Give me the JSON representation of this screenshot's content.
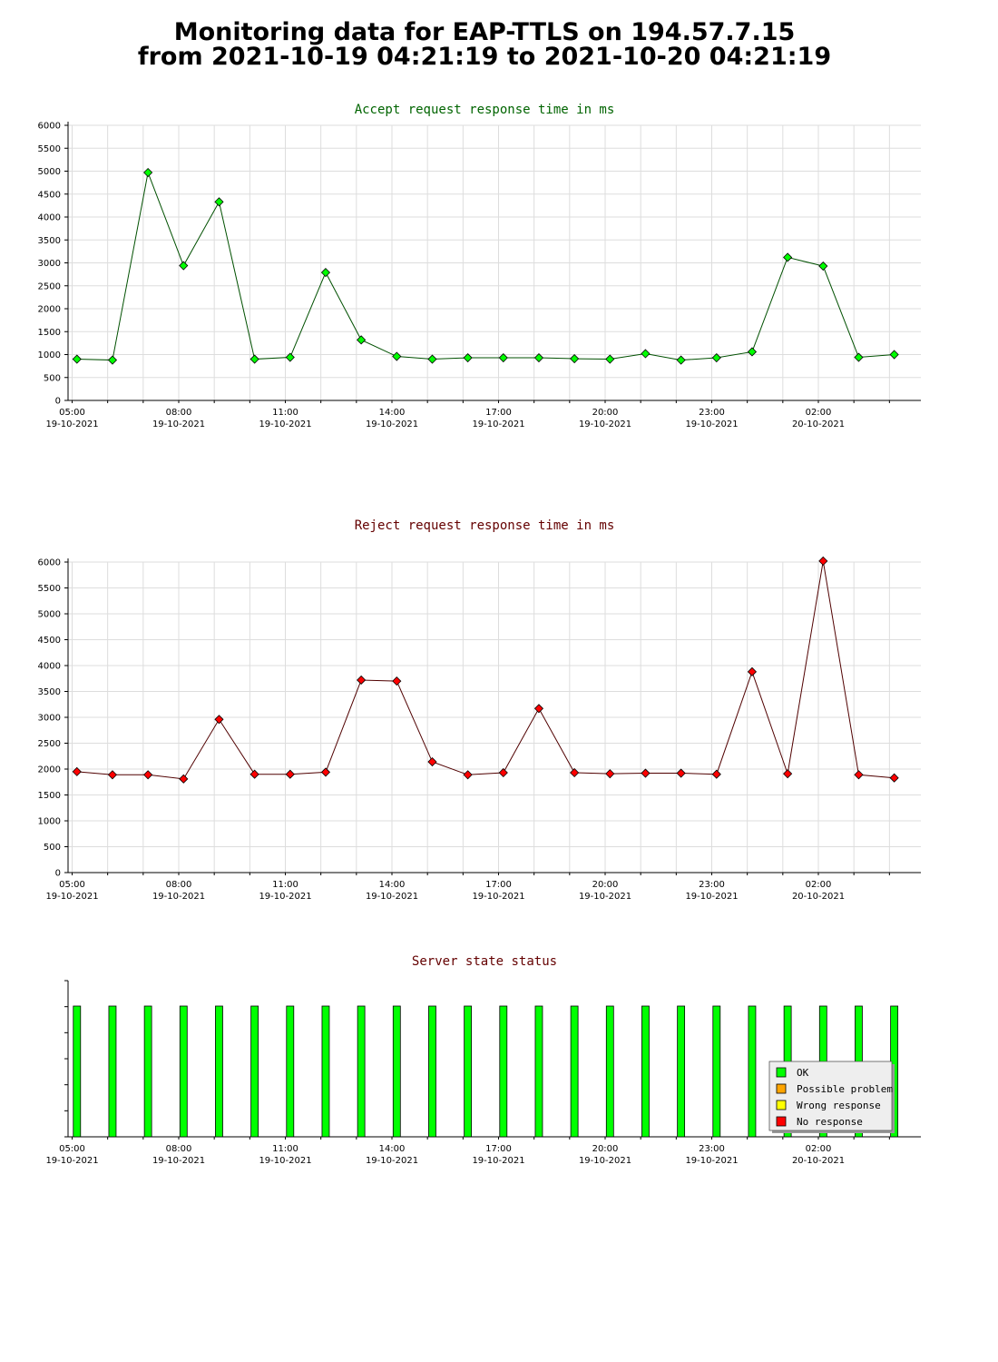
{
  "title": {
    "line1": "Monitoring data for EAP-TTLS on 194.57.7.15",
    "line2": "from 2021-10-19 04:21:19 to 2021-10-20 04:21:19"
  },
  "colors": {
    "accept": "#00ff00",
    "accept_line": "#005000",
    "accept_title": "#006400",
    "reject": "#ff0000",
    "reject_line": "#500000",
    "reject_title": "#640000",
    "status_title": "#640000",
    "ok": "#00ff00",
    "possible_problem": "#ffa500",
    "wrong_response": "#ffff00",
    "no_response": "#ff0000",
    "grid": "#dddddd"
  },
  "x_ticks": [
    {
      "time": "05:00",
      "date": "19-10-2021"
    },
    {
      "time": "08:00",
      "date": "19-10-2021"
    },
    {
      "time": "11:00",
      "date": "19-10-2021"
    },
    {
      "time": "14:00",
      "date": "19-10-2021"
    },
    {
      "time": "17:00",
      "date": "19-10-2021"
    },
    {
      "time": "20:00",
      "date": "19-10-2021"
    },
    {
      "time": "23:00",
      "date": "19-10-2021"
    },
    {
      "time": "02:00",
      "date": "20-10-2021"
    }
  ],
  "chart_data": [
    {
      "type": "line",
      "title": "Accept request response time in ms",
      "x_unit": "hours after 2021-10-19 05:00",
      "x": [
        0.25,
        1.25,
        2.25,
        3.25,
        4.25,
        5.25,
        6.25,
        7.25,
        8.25,
        9.25,
        10.25,
        11.25,
        12.25,
        13.25,
        14.25,
        15.25,
        16.25,
        17.25,
        18.25,
        19.25,
        20.25,
        21.25,
        22.25,
        23.25
      ],
      "values": [
        900,
        880,
        4970,
        2940,
        4330,
        900,
        940,
        2790,
        1320,
        960,
        900,
        930,
        930,
        930,
        910,
        900,
        1020,
        880,
        930,
        1060,
        3120,
        2930,
        940,
        1000
      ],
      "ylim": [
        0,
        6000
      ],
      "yticks": [
        0,
        500,
        1000,
        1500,
        2000,
        2500,
        3000,
        3500,
        4000,
        4500,
        5000,
        5500,
        6000
      ],
      "grid": true
    },
    {
      "type": "line",
      "title": "Reject request response time in ms",
      "x_unit": "hours after 2021-10-19 05:00",
      "x": [
        0.25,
        1.25,
        2.25,
        3.25,
        4.25,
        5.25,
        6.25,
        7.25,
        8.25,
        9.25,
        10.25,
        11.25,
        12.25,
        13.25,
        14.25,
        15.25,
        16.25,
        17.25,
        18.25,
        19.25,
        20.25,
        21.25,
        22.25,
        23.25
      ],
      "values": [
        1950,
        1890,
        1890,
        1810,
        2960,
        1900,
        1900,
        1940,
        3720,
        3700,
        2140,
        1890,
        1930,
        3170,
        1930,
        1910,
        1920,
        1920,
        1900,
        3880,
        1910,
        6020,
        1890,
        1830
      ],
      "ylim": [
        0,
        6000
      ],
      "yticks": [
        0,
        500,
        1000,
        1500,
        2000,
        2500,
        3000,
        3500,
        4000,
        4500,
        5000,
        5500,
        6000
      ],
      "grid": true
    },
    {
      "type": "bar",
      "title": "Server state status",
      "x": [
        0.25,
        1.25,
        2.25,
        3.25,
        4.25,
        5.25,
        6.25,
        7.25,
        8.25,
        9.25,
        10.25,
        11.25,
        12.25,
        13.25,
        14.25,
        15.25,
        16.25,
        17.25,
        18.25,
        19.25,
        20.25,
        21.25,
        22.25,
        23.25
      ],
      "states": [
        "OK",
        "OK",
        "OK",
        "OK",
        "OK",
        "OK",
        "OK",
        "OK",
        "OK",
        "OK",
        "OK",
        "OK",
        "OK",
        "OK",
        "OK",
        "OK",
        "OK",
        "OK",
        "OK",
        "OK",
        "OK",
        "OK",
        "OK",
        "OK"
      ],
      "legend": [
        "OK",
        "Possible problem",
        "Wrong response",
        "No response"
      ],
      "legend_position": "bottom-right"
    }
  ]
}
